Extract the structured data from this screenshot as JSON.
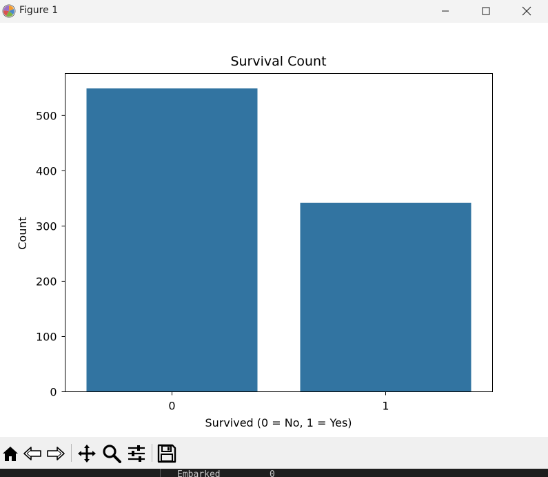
{
  "window": {
    "title": "Figure 1",
    "icons": {
      "app": "matplotlib-icon",
      "minimize": "minimize-icon",
      "maximize": "maximize-icon",
      "close": "close-icon"
    }
  },
  "chart_data": {
    "type": "bar",
    "title": "Survival Count",
    "xlabel": "Survived (0 = No, 1 = Yes)",
    "ylabel": "Count",
    "categories": [
      "0",
      "1"
    ],
    "values": [
      549,
      342
    ],
    "ylim": [
      0,
      576
    ],
    "yticks": [
      0,
      100,
      200,
      300,
      400,
      500
    ],
    "bar_color": "#3274a1",
    "grid": false,
    "legend": null
  },
  "toolbar": {
    "tools": [
      {
        "name": "home-icon"
      },
      {
        "name": "back-icon"
      },
      {
        "name": "forward-icon"
      },
      {
        "name": "pan-icon"
      },
      {
        "name": "zoom-icon"
      },
      {
        "name": "configure-subplots-icon"
      },
      {
        "name": "save-icon"
      }
    ]
  },
  "console": {
    "label": "Embarked",
    "value": "0"
  }
}
